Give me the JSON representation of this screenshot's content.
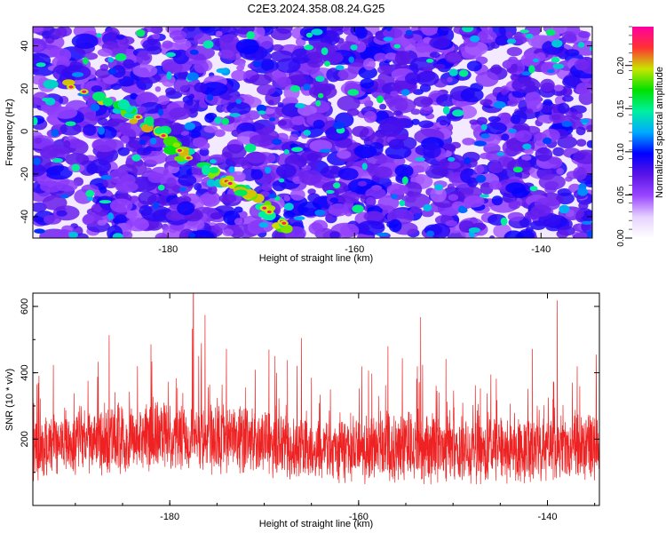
{
  "title": "C2E3.2024.358.08.24.G25",
  "chart_data": [
    {
      "type": "heatmap",
      "xlabel": "Height of straight line (km)",
      "ylabel": "Frequency (Hz)",
      "xlim": [
        -194.5,
        -134.5
      ],
      "ylim": [
        -50,
        49
      ],
      "xticks": [
        -180,
        -160,
        -140
      ],
      "xtick_labels": [
        "-180",
        "-160",
        "-140"
      ],
      "yticks": [
        -40,
        -20,
        0,
        20,
        40
      ],
      "ytick_labels": [
        "-40",
        "-20",
        "0",
        "20",
        "40"
      ],
      "colorbar": {
        "label": "Normalized spectral amplitude",
        "range": [
          0,
          0.245
        ],
        "ticks": [
          0,
          0.05,
          0.1,
          0.15,
          0.2
        ],
        "tick_labels": [
          "0.00",
          "0.05",
          "0.10",
          "0.15",
          "0.20"
        ],
        "colormap": [
          "#ffffff",
          "#e6d2ff",
          "#9a46ff",
          "#5a14e6",
          "#0000ff",
          "#00aaff",
          "#00f0a0",
          "#00e000",
          "#c8e600",
          "#ff3232",
          "#ff00a0"
        ]
      },
      "ridge": {
        "description_free": true,
        "x": [
          -193,
          -185,
          -181,
          -178,
          -172,
          -167
        ],
        "y": [
          25,
          12,
          0,
          -12,
          -28,
          -45
        ],
        "peak_amplitude": 0.245
      },
      "grid": false
    },
    {
      "type": "line",
      "color": "#ee2222",
      "xlabel": "Height of straight line (km)",
      "ylabel": "SNR (10 * v/v)",
      "xlim": [
        -194.5,
        -134.5
      ],
      "ylim": [
        0,
        640
      ],
      "xticks": [
        -180,
        -160,
        -140
      ],
      "xtick_labels": [
        "-180",
        "-160",
        "-140"
      ],
      "yticks": [
        200,
        400,
        600
      ],
      "ytick_labels": [
        "200",
        "400",
        "600"
      ],
      "series_summary": {
        "baseline": 170,
        "typical_range": [
          60,
          330
        ],
        "max_value": 640,
        "max_at_x": -177.5
      },
      "grid": false
    }
  ]
}
